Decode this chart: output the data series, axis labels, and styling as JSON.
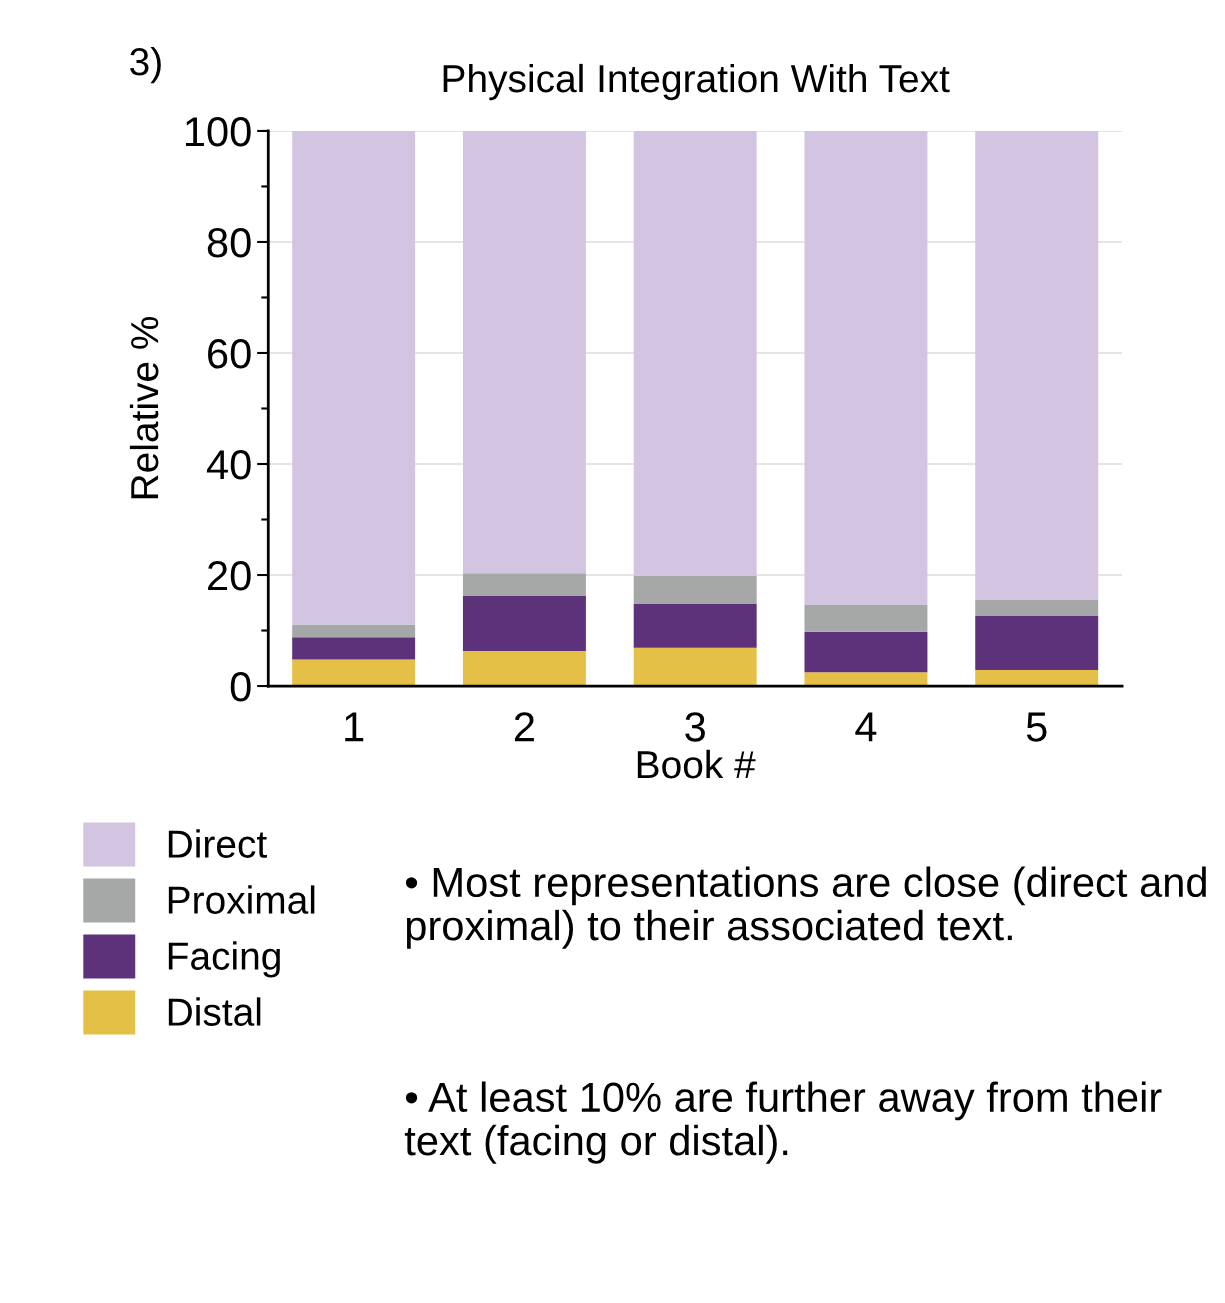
{
  "chart_data": {
    "type": "bar",
    "title": "Physical Integration With Text",
    "xlabel": "Book #",
    "ylabel": "Relative %",
    "categories": [
      "1",
      "2",
      "3",
      "4",
      "5"
    ],
    "stacked": true,
    "series": [
      {
        "name": "Distal",
        "color": "#e4c046",
        "values": [
          4.8,
          6.3,
          6.9,
          2.5,
          2.9
        ]
      },
      {
        "name": "Facing",
        "color": "#5e327b",
        "values": [
          4.0,
          10.0,
          7.9,
          7.3,
          9.8
        ]
      },
      {
        "name": "Proximal",
        "color": "#a5a8a7",
        "values": [
          2.3,
          4.0,
          5.0,
          4.8,
          2.8
        ]
      },
      {
        "name": "Direct",
        "color": "#d3c4e1",
        "values": [
          88.9,
          79.7,
          80.2,
          85.4,
          84.5
        ]
      }
    ],
    "ylim": [
      0,
      100
    ],
    "yticks": [
      0,
      {
        "value": 10,
        "label": null
      },
      20,
      {
        "value": 30,
        "label": null
      },
      40,
      {
        "value": 50,
        "label": null
      },
      60,
      {
        "value": 70,
        "label": null
      },
      80,
      {
        "value": 90,
        "label": null
      },
      100
    ],
    "grid": "y",
    "legend": "bottom left",
    "annotations": [
      "3)",
      "• Most representations are close (direct and proximal) to their associated text.",
      "• At least 10% are further away from their text (facing or distal)."
    ]
  }
}
